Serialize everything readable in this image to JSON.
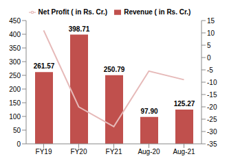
{
  "chart_data": {
    "type": "bar",
    "categories": [
      "FY19",
      "FY20",
      "FY21",
      "Aug-20",
      "Aug-21"
    ],
    "series": [
      {
        "name": "Revenue ( in Rs. Cr.)",
        "type": "bar",
        "color": "#c0504d",
        "values": [
          261.57,
          398.71,
          250.79,
          97.9,
          125.27
        ],
        "value_labels": [
          "261.57",
          "398.71",
          "250.79",
          "97.90",
          "125.27"
        ],
        "data_labels": true
      },
      {
        "name": "Net Profit ( in Rs. Cr.)",
        "type": "line",
        "color": "#e6b9b8",
        "axis": "y2",
        "values": [
          11,
          -20,
          -28,
          -5.5,
          -9
        ]
      }
    ],
    "ylim": [
      0,
      450
    ],
    "yticks": [
      0,
      50,
      100,
      150,
      200,
      250,
      300,
      350,
      400,
      450
    ],
    "y2lim": [
      -35,
      15
    ],
    "y2ticks": [
      -35,
      -30,
      -25,
      -20,
      -15,
      -10,
      -5,
      0,
      5,
      10,
      15
    ],
    "legend": "top"
  }
}
